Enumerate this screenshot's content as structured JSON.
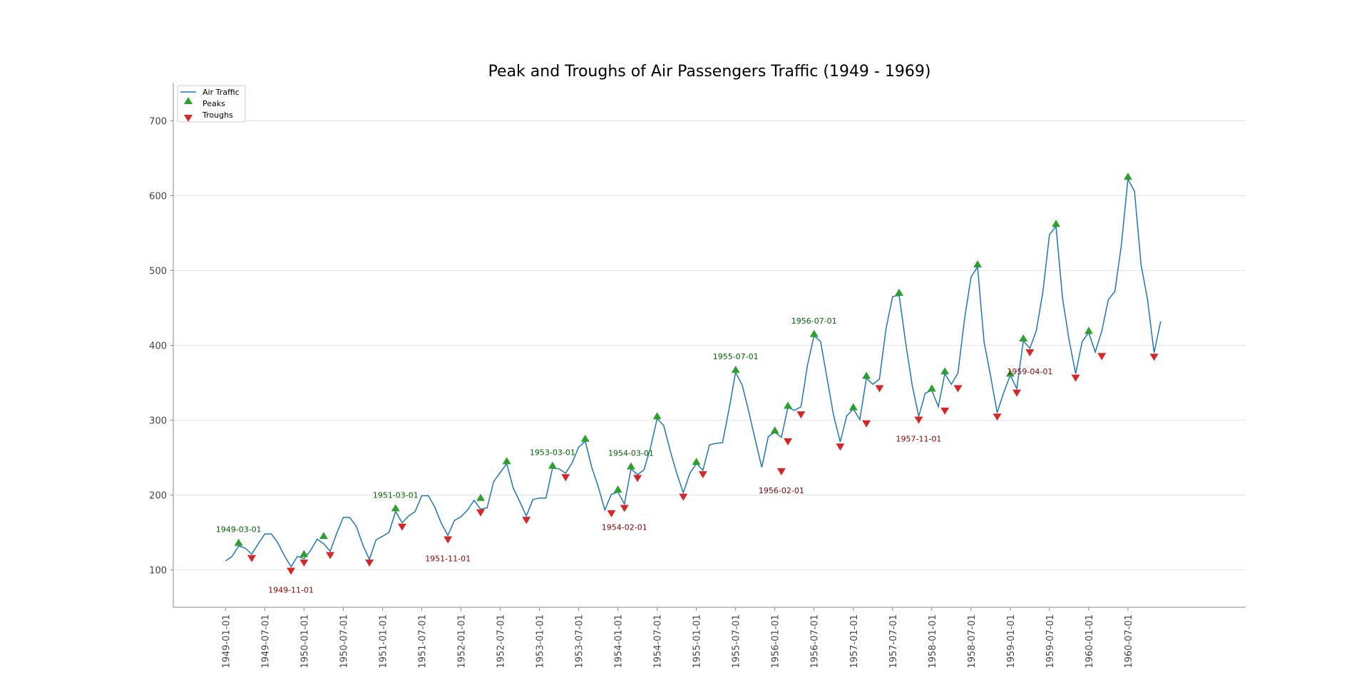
{
  "chart_data": {
    "type": "line",
    "title": "Peak and Troughs of Air Passengers Traffic (1949 - 1969)",
    "xlabel": "",
    "ylabel": "",
    "ylim": [
      50,
      750
    ],
    "xlim_months": [
      "1948-05",
      "1962-01"
    ],
    "y_ticks": [
      100,
      200,
      300,
      400,
      500,
      600,
      700
    ],
    "x_ticks": [
      "1949-01-01",
      "1949-07-01",
      "1950-01-01",
      "1950-07-01",
      "1951-01-01",
      "1951-07-01",
      "1952-01-01",
      "1952-07-01",
      "1953-01-01",
      "1953-07-01",
      "1954-01-01",
      "1954-07-01",
      "1955-01-01",
      "1955-07-01",
      "1956-01-01",
      "1956-07-01",
      "1957-01-01",
      "1957-07-01",
      "1958-01-01",
      "1958-07-01",
      "1959-01-01",
      "1959-07-01",
      "1960-01-01",
      "1960-07-01"
    ],
    "grid": "horizontal",
    "legend_position": "top-left",
    "series": [
      {
        "name": "Air Traffic",
        "color": "#1f77b4",
        "start": "1949-01",
        "values": [
          112,
          118,
          132,
          129,
          121,
          135,
          148,
          148,
          136,
          119,
          104,
          118,
          115,
          126,
          141,
          135,
          125,
          149,
          170,
          170,
          158,
          133,
          114,
          140,
          145,
          150,
          178,
          163,
          172,
          178,
          199,
          199,
          184,
          162,
          146,
          166,
          171,
          180,
          193,
          181,
          183,
          218,
          230,
          242,
          209,
          191,
          172,
          194,
          196,
          196,
          236,
          235,
          229,
          243,
          264,
          272,
          237,
          211,
          180,
          201,
          204,
          188,
          235,
          227,
          234,
          264,
          302,
          293,
          259,
          229,
          203,
          229,
          242,
          233,
          267,
          269,
          270,
          315,
          364,
          347,
          312,
          274,
          237,
          278,
          284,
          277,
          317,
          313,
          318,
          374,
          413,
          405,
          355,
          306,
          271,
          306,
          315,
          301,
          356,
          348,
          355,
          422,
          465,
          467,
          404,
          347,
          305,
          336,
          340,
          318,
          362,
          348,
          363,
          435,
          491,
          505,
          404,
          359,
          310,
          337,
          360,
          342,
          406,
          396,
          420,
          472,
          548,
          559,
          463,
          407,
          362,
          405,
          417,
          391,
          419,
          461,
          472,
          535,
          622,
          606,
          508,
          461,
          390,
          432
        ]
      }
    ],
    "peaks": {
      "name": "Peaks",
      "color": "#2ca02c",
      "points": [
        {
          "x": "1949-03",
          "y": 136
        },
        {
          "x": "1950-01",
          "y": 121
        },
        {
          "x": "1950-04",
          "y": 145
        },
        {
          "x": "1951-03",
          "y": 182
        },
        {
          "x": "1952-04",
          "y": 196
        },
        {
          "x": "1952-08",
          "y": 245
        },
        {
          "x": "1953-03",
          "y": 239
        },
        {
          "x": "1953-08",
          "y": 275
        },
        {
          "x": "1954-01",
          "y": 207
        },
        {
          "x": "1954-03",
          "y": 238
        },
        {
          "x": "1954-07",
          "y": 305
        },
        {
          "x": "1955-01",
          "y": 244
        },
        {
          "x": "1955-07",
          "y": 367
        },
        {
          "x": "1956-01",
          "y": 286
        },
        {
          "x": "1956-03",
          "y": 319
        },
        {
          "x": "1956-07",
          "y": 415
        },
        {
          "x": "1957-01",
          "y": 317
        },
        {
          "x": "1957-03",
          "y": 359
        },
        {
          "x": "1957-08",
          "y": 470
        },
        {
          "x": "1958-01",
          "y": 342
        },
        {
          "x": "1958-03",
          "y": 365
        },
        {
          "x": "1958-08",
          "y": 508
        },
        {
          "x": "1959-01",
          "y": 362
        },
        {
          "x": "1959-03",
          "y": 409
        },
        {
          "x": "1959-08",
          "y": 562
        },
        {
          "x": "1960-01",
          "y": 419
        },
        {
          "x": "1960-07",
          "y": 625
        }
      ]
    },
    "troughs": {
      "name": "Troughs",
      "color": "#d62728",
      "points": [
        {
          "x": "1949-05",
          "y": 116
        },
        {
          "x": "1949-11",
          "y": 99
        },
        {
          "x": "1950-01",
          "y": 110
        },
        {
          "x": "1950-05",
          "y": 120
        },
        {
          "x": "1950-11",
          "y": 110
        },
        {
          "x": "1951-04",
          "y": 158
        },
        {
          "x": "1951-11",
          "y": 141
        },
        {
          "x": "1952-04",
          "y": 177
        },
        {
          "x": "1952-11",
          "y": 167
        },
        {
          "x": "1953-05",
          "y": 224
        },
        {
          "x": "1953-12",
          "y": 176
        },
        {
          "x": "1954-02",
          "y": 183
        },
        {
          "x": "1954-04",
          "y": 223
        },
        {
          "x": "1954-11",
          "y": 198
        },
        {
          "x": "1955-02",
          "y": 228
        },
        {
          "x": "1956-02",
          "y": 232
        },
        {
          "x": "1956-03",
          "y": 272
        },
        {
          "x": "1956-05",
          "y": 308
        },
        {
          "x": "1956-11",
          "y": 265
        },
        {
          "x": "1957-03",
          "y": 296
        },
        {
          "x": "1957-05",
          "y": 343
        },
        {
          "x": "1957-11",
          "y": 301
        },
        {
          "x": "1958-03",
          "y": 313
        },
        {
          "x": "1958-05",
          "y": 343
        },
        {
          "x": "1958-11",
          "y": 305
        },
        {
          "x": "1959-02",
          "y": 337
        },
        {
          "x": "1959-04",
          "y": 391
        },
        {
          "x": "1959-11",
          "y": 357
        },
        {
          "x": "1960-03",
          "y": 386
        },
        {
          "x": "1960-11",
          "y": 385
        }
      ]
    },
    "annotations": [
      {
        "text": "1949-03-01",
        "kind": "peak",
        "x": "1949-03",
        "y": 136
      },
      {
        "text": "1951-03-01",
        "kind": "peak",
        "x": "1951-03",
        "y": 182
      },
      {
        "text": "1953-03-01",
        "kind": "peak",
        "x": "1953-03",
        "y": 239
      },
      {
        "text": "1954-03-01",
        "kind": "peak",
        "x": "1954-03",
        "y": 238
      },
      {
        "text": "1955-07-01",
        "kind": "peak",
        "x": "1955-07",
        "y": 367
      },
      {
        "text": "1956-07-01",
        "kind": "peak",
        "x": "1956-07",
        "y": 415
      },
      {
        "text": "1949-11-01",
        "kind": "trough",
        "x": "1949-11",
        "y": 99
      },
      {
        "text": "1951-11-01",
        "kind": "trough",
        "x": "1951-11",
        "y": 141
      },
      {
        "text": "1954-02-01",
        "kind": "trough",
        "x": "1954-02",
        "y": 183
      },
      {
        "text": "1956-02-01",
        "kind": "trough",
        "x": "1956-02",
        "y": 232
      },
      {
        "text": "1957-11-01",
        "kind": "trough",
        "x": "1957-11",
        "y": 301
      },
      {
        "text": "1959-04-01",
        "kind": "trough",
        "x": "1959-04",
        "y": 391
      }
    ],
    "legend": [
      "Air Traffic",
      "Peaks",
      "Troughs"
    ]
  }
}
